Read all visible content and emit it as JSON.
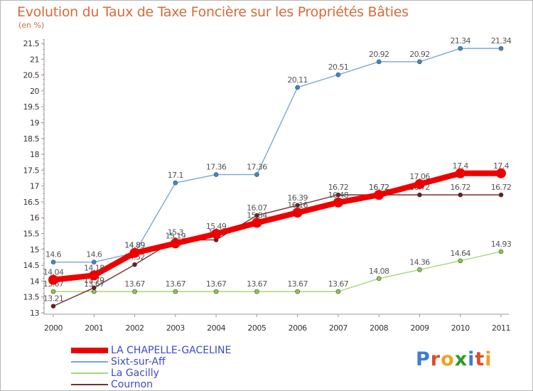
{
  "title": "Evolution du Taux de Taxe Foncière sur les Propriétés Bâties",
  "subtitle": "(en %)",
  "logo": {
    "text": "Proxiti",
    "colors": [
      "#3a7ed6",
      "#e24a2a",
      "#f0a020",
      "#2a9a2a",
      "#3a7ed6",
      "#e24a2a",
      "#f0a020"
    ]
  },
  "chart_data": {
    "type": "line",
    "title": "Evolution du Taux de Taxe Foncière sur les Propriétés Bâties",
    "ylabel": "(en %)",
    "xlabel": "",
    "x": [
      "2000",
      "2001",
      "2002",
      "2003",
      "2004",
      "2005",
      "2006",
      "2007",
      "2008",
      "2009",
      "2010",
      "2011"
    ],
    "ylim": [
      13,
      21.5
    ],
    "yticks": [
      "13",
      "13.5",
      "14",
      "14.5",
      "15",
      "15.5",
      "16",
      "16.5",
      "17",
      "17.5",
      "18",
      "18.5",
      "19",
      "19.5",
      "20",
      "20.5",
      "21",
      "21.5"
    ],
    "grid": false,
    "legend_position": "bottom-left",
    "series": [
      {
        "name": "Sixt-sur-Aff",
        "color": "#7aa6d6",
        "marker": "#3a8ad0",
        "values": [
          14.6,
          14.6,
          14.89,
          17.1,
          17.36,
          17.36,
          20.11,
          20.51,
          20.92,
          20.92,
          21.34,
          21.34
        ],
        "labels": [
          "14.6",
          "14.6",
          "14.89",
          "17.1",
          "17.36",
          "17.36",
          "20.11",
          "20.51",
          "20.92",
          "20.92",
          "21.34",
          "21.34"
        ]
      },
      {
        "name": "La Gacilly",
        "color": "#a6d67a",
        "marker": "#8cc84a",
        "values": [
          13.67,
          13.67,
          13.67,
          13.67,
          13.67,
          13.67,
          13.67,
          13.67,
          14.08,
          14.36,
          14.64,
          14.93
        ],
        "labels": [
          "13.67",
          "13.67",
          "13.67",
          "13.67",
          "13.67",
          "13.67",
          "13.67",
          "13.67",
          "14.08",
          "14.36",
          "14.64",
          "14.93"
        ]
      },
      {
        "name": "Cournon",
        "color": "#7a2e2e",
        "marker": "#6a1e1e",
        "values": [
          13.21,
          13.79,
          14.52,
          15.3,
          15.3,
          16.07,
          16.39,
          16.72,
          16.72,
          16.72,
          16.72,
          16.72
        ],
        "labels": [
          "13.21",
          "13.79",
          "14.52",
          "15.3",
          "15.3",
          "16.07",
          "16.39",
          "16.72",
          "16.72",
          "16.72",
          "16.72",
          "16.72"
        ]
      },
      {
        "name": "LA CHAPELLE-GACELINE",
        "color": "#ee0000",
        "marker": "#ee0000",
        "values": [
          14.04,
          14.18,
          14.89,
          15.19,
          15.49,
          15.84,
          16.16,
          16.48,
          16.72,
          17.06,
          17.4,
          17.4
        ],
        "labels": [
          "14.04",
          "14.18",
          "14.89",
          "15.19",
          "15.49",
          "15.84",
          "16.16",
          "16.48",
          "16.72",
          "17.06",
          "17.4",
          "17.4"
        ]
      }
    ],
    "legend": [
      "LA CHAPELLE-GACELINE",
      "Sixt-sur-Aff",
      "La Gacilly",
      "Cournon"
    ]
  }
}
